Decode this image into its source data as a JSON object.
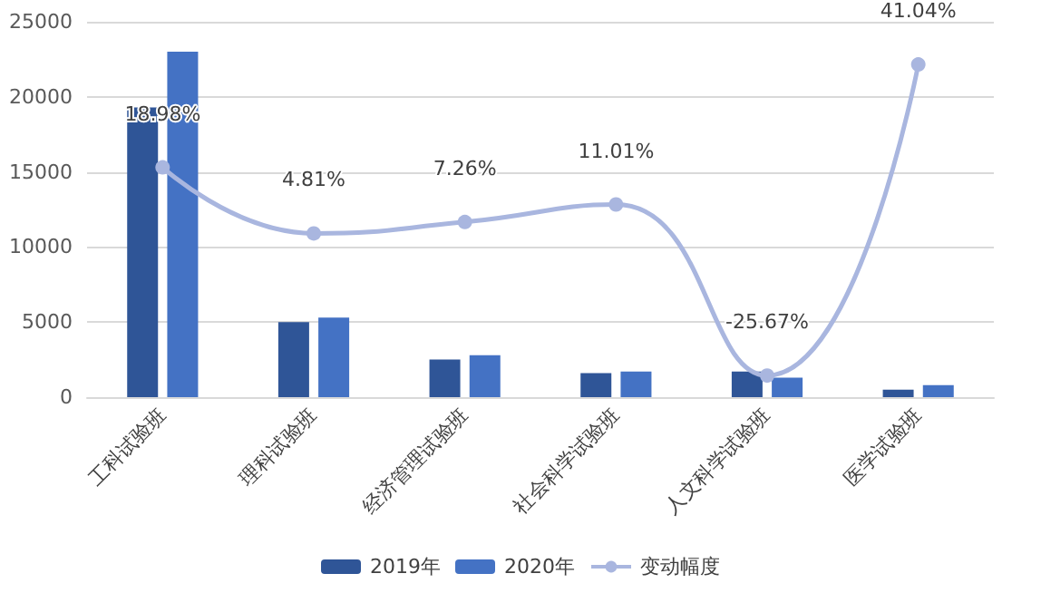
{
  "chart_data": {
    "type": "bar",
    "categories": [
      "工科试验班",
      "理科试验班",
      "经济管理试验班",
      "社会科学试验班",
      "人文科学试验班",
      "医学试验班"
    ],
    "series": [
      {
        "name": "2019年",
        "color": "#2f5597",
        "values": [
          19300,
          5000,
          2500,
          1600,
          1700,
          500
        ]
      },
      {
        "name": "2020年",
        "color": "#4472c4",
        "values": [
          23000,
          5300,
          2800,
          1700,
          1300,
          800
        ]
      },
      {
        "name": "变动幅度",
        "type": "line",
        "axis": "y2",
        "color": "#a9b6df",
        "values": [
          18.98,
          4.81,
          7.26,
          11.01,
          -25.67,
          41.04
        ],
        "value_labels": [
          "18.98%",
          "4.81%",
          "7.26%",
          "11.01%",
          "-25.67%",
          "41.04%"
        ]
      }
    ],
    "ylim": [
      0,
      25000
    ],
    "yticks": [
      0,
      5000,
      10000,
      15000,
      20000,
      25000
    ],
    "y2lim": [
      -30.3,
      50.2
    ],
    "grid": "y",
    "legend": "bottom",
    "marker": "circle"
  }
}
